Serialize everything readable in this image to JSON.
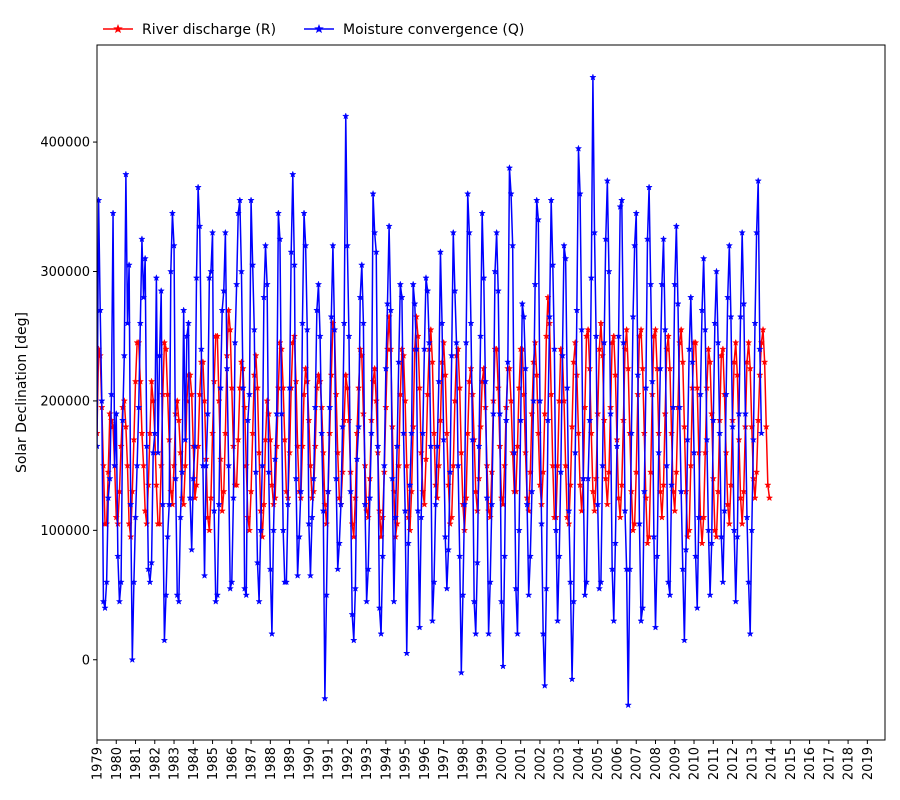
{
  "chart_data": {
    "type": "line",
    "title": "",
    "xlabel": "",
    "ylabel": "Solar Declination [deg]",
    "x_range": [
      1979.0,
      2019.9167
    ],
    "ylim": [
      -62000,
      475000
    ],
    "x_tick_labels": [
      "1979",
      "1980",
      "1981",
      "1982",
      "1983",
      "1984",
      "1985",
      "1986",
      "1987",
      "1988",
      "1989",
      "1990",
      "1991",
      "1992",
      "1993",
      "1994",
      "1995",
      "1996",
      "1997",
      "1998",
      "1999",
      "2000",
      "2001",
      "2002",
      "2003",
      "2004",
      "2005",
      "2006",
      "2007",
      "2008",
      "2009",
      "2010",
      "2011",
      "2012",
      "2013",
      "2014",
      "2015",
      "2016",
      "2017",
      "2018",
      "2019"
    ],
    "y_ticks": [
      0,
      100000,
      200000,
      300000,
      400000
    ],
    "y_tick_labels": [
      "0",
      "100000",
      "200000",
      "300000",
      "400000"
    ],
    "grid": false,
    "legend": {
      "placement": "top-left, above plot",
      "marker": "star"
    },
    "x_sampling": "monthly, 1979-01 to 2019-12",
    "series": [
      {
        "name": "River discharge ($R$)",
        "legend_label": "River discharge (R)",
        "color": "#ff0000",
        "marker": "star",
        "values": [
          175000,
          240000,
          235000,
          195000,
          150000,
          105000,
          105000,
          145000,
          190000,
          185000,
          180000,
          150000,
          110000,
          105000,
          130000,
          165000,
          195000,
          200000,
          180000,
          150000,
          105000,
          95000,
          130000,
          170000,
          215000,
          245000,
          245000,
          215000,
          175000,
          150000,
          115000,
          105000,
          135000,
          175000,
          215000,
          200000,
          175000,
          135000,
          105000,
          105000,
          150000,
          205000,
          245000,
          240000,
          205000,
          170000,
          130000,
          120000,
          150000,
          190000,
          200000,
          185000,
          160000,
          125000,
          120000,
          150000,
          200000,
          220000,
          220000,
          205000,
          165000,
          125000,
          135000,
          165000,
          205000,
          230000,
          230000,
          200000,
          155000,
          110000,
          100000,
          125000,
          175000,
          215000,
          250000,
          250000,
          200000,
          155000,
          115000,
          130000,
          175000,
          235000,
          270000,
          255000,
          210000,
          165000,
          135000,
          135000,
          170000,
          210000,
          230000,
          225000,
          195000,
          150000,
          110000,
          100000,
          130000,
          175000,
          220000,
          235000,
          210000,
          160000,
          115000,
          95000,
          120000,
          170000,
          200000,
          190000,
          170000,
          135000,
          120000,
          125000,
          165000,
          210000,
          245000,
          240000,
          210000,
          170000,
          130000,
          125000,
          160000,
          210000,
          245000,
          250000,
          215000,
          165000,
          130000,
          125000,
          165000,
          205000,
          225000,
          215000,
          185000,
          150000,
          125000,
          130000,
          165000,
          210000,
          220000,
          215000,
          195000,
          160000,
          120000,
          105000,
          130000,
          175000,
          220000,
          260000,
          255000,
          205000,
          160000,
          125000,
          120000,
          145000,
          185000,
          220000,
          210000,
          185000,
          145000,
          105000,
          95000,
          125000,
          175000,
          210000,
          240000,
          235000,
          190000,
          150000,
          115000,
          110000,
          140000,
          185000,
          215000,
          225000,
          200000,
          160000,
          115000,
          95000,
          110000,
          145000,
          195000,
          240000,
          265000,
          240000,
          180000,
          130000,
          95000,
          105000,
          150000,
          205000,
          240000,
          235000,
          200000,
          150000,
          110000,
          100000,
          130000,
          180000,
          240000,
          265000,
          250000,
          210000,
          160000,
          130000,
          120000,
          155000,
          205000,
          240000,
          255000,
          230000,
          175000,
          135000,
          125000,
          150000,
          185000,
          230000,
          245000,
          220000,
          175000,
          135000,
          105000,
          110000,
          150000,
          200000,
          235000,
          240000,
          210000,
          160000,
          120000,
          100000,
          125000,
          175000,
          215000,
          225000,
          205000,
          170000,
          130000,
          115000,
          140000,
          180000,
          215000,
          225000,
          195000,
          150000,
          115000,
          110000,
          145000,
          200000,
          240000,
          240000,
          210000,
          165000,
          125000,
          120000,
          150000,
          195000,
          225000,
          225000,
          200000,
          160000,
          130000,
          130000,
          165000,
          210000,
          240000,
          240000,
          205000,
          160000,
          125000,
          115000,
          145000,
          190000,
          230000,
          245000,
          220000,
          175000,
          135000,
          120000,
          145000,
          190000,
          250000,
          280000,
          260000,
          205000,
          150000,
          110000,
          110000,
          150000,
          200000,
          240000,
          235000,
          200000,
          150000,
          110000,
          105000,
          135000,
          180000,
          230000,
          245000,
          220000,
          175000,
          135000,
          115000,
          140000,
          195000,
          250000,
          255000,
          225000,
          175000,
          130000,
          115000,
          140000,
          190000,
          240000,
          260000,
          235000,
          185000,
          140000,
          120000,
          145000,
          195000,
          245000,
          250000,
          220000,
          170000,
          125000,
          110000,
          135000,
          185000,
          240000,
          255000,
          225000,
          175000,
          130000,
          100000,
          105000,
          145000,
          205000,
          250000,
          255000,
          225000,
          175000,
          125000,
          90000,
          95000,
          145000,
          205000,
          250000,
          255000,
          225000,
          175000,
          130000,
          110000,
          135000,
          190000,
          240000,
          250000,
          225000,
          175000,
          130000,
          115000,
          145000,
          195000,
          245000,
          255000,
          230000,
          180000,
          130000,
          95000,
          100000,
          150000,
          210000,
          245000,
          245000,
          210000,
          160000,
          110000,
          90000,
          110000,
          160000,
          210000,
          240000,
          230000,
          190000,
          140000,
          100000,
          95000,
          130000,
          185000,
          235000,
          240000,
          205000,
          160000,
          120000,
          105000,
          135000,
          185000,
          230000,
          245000,
          220000,
          170000,
          125000,
          105000,
          130000,
          180000,
          230000,
          245000,
          225000,
          180000,
          140000,
          125000,
          145000,
          185000,
          220000,
          245000,
          255000,
          230000,
          180000,
          135000,
          125000
        ]
      },
      {
        "name": "Moisture convergence ($Q$)",
        "legend_label": "Moisture convergence (Q)",
        "color": "#0000ff",
        "marker": "star",
        "values": [
          165000,
          355000,
          270000,
          200000,
          45000,
          40000,
          60000,
          125000,
          140000,
          205000,
          345000,
          150000,
          190000,
          80000,
          45000,
          60000,
          185000,
          235000,
          375000,
          260000,
          305000,
          120000,
          0,
          60000,
          110000,
          150000,
          195000,
          260000,
          325000,
          280000,
          310000,
          165000,
          70000,
          60000,
          75000,
          160000,
          175000,
          295000,
          160000,
          235000,
          285000,
          120000,
          15000,
          50000,
          95000,
          120000,
          300000,
          345000,
          320000,
          140000,
          50000,
          45000,
          110000,
          145000,
          270000,
          170000,
          250000,
          260000,
          125000,
          85000,
          140000,
          165000,
          295000,
          365000,
          335000,
          240000,
          150000,
          65000,
          150000,
          190000,
          295000,
          300000,
          330000,
          115000,
          45000,
          50000,
          120000,
          210000,
          270000,
          285000,
          330000,
          225000,
          150000,
          55000,
          60000,
          125000,
          245000,
          290000,
          345000,
          355000,
          300000,
          210000,
          55000,
          50000,
          185000,
          205000,
          355000,
          305000,
          255000,
          145000,
          75000,
          45000,
          100000,
          150000,
          280000,
          320000,
          290000,
          145000,
          70000,
          20000,
          100000,
          155000,
          190000,
          345000,
          325000,
          190000,
          100000,
          60000,
          60000,
          120000,
          210000,
          315000,
          375000,
          305000,
          140000,
          65000,
          95000,
          130000,
          260000,
          345000,
          320000,
          255000,
          105000,
          65000,
          110000,
          140000,
          195000,
          270000,
          290000,
          250000,
          175000,
          115000,
          -30000,
          50000,
          130000,
          195000,
          265000,
          320000,
          255000,
          140000,
          70000,
          90000,
          120000,
          180000,
          260000,
          420000,
          320000,
          250000,
          130000,
          35000,
          15000,
          55000,
          155000,
          180000,
          280000,
          305000,
          260000,
          120000,
          45000,
          70000,
          125000,
          175000,
          360000,
          330000,
          315000,
          165000,
          40000,
          20000,
          80000,
          150000,
          225000,
          275000,
          335000,
          270000,
          140000,
          45000,
          110000,
          165000,
          230000,
          290000,
          280000,
          175000,
          115000,
          5000,
          90000,
          135000,
          175000,
          290000,
          275000,
          240000,
          115000,
          25000,
          110000,
          175000,
          240000,
          295000,
          285000,
          245000,
          165000,
          30000,
          60000,
          120000,
          165000,
          215000,
          315000,
          260000,
          170000,
          95000,
          55000,
          85000,
          145000,
          235000,
          330000,
          285000,
          245000,
          150000,
          80000,
          -10000,
          50000,
          120000,
          245000,
          360000,
          330000,
          260000,
          170000,
          45000,
          20000,
          75000,
          165000,
          250000,
          345000,
          295000,
          215000,
          125000,
          20000,
          60000,
          120000,
          190000,
          300000,
          330000,
          285000,
          190000,
          45000,
          -5000,
          80000,
          185000,
          230000,
          380000,
          360000,
          320000,
          160000,
          55000,
          20000,
          100000,
          185000,
          275000,
          265000,
          225000,
          120000,
          50000,
          80000,
          130000,
          200000,
          290000,
          355000,
          340000,
          200000,
          105000,
          20000,
          -20000,
          55000,
          185000,
          265000,
          355000,
          305000,
          240000,
          100000,
          30000,
          80000,
          145000,
          235000,
          320000,
          310000,
          210000,
          115000,
          60000,
          -15000,
          45000,
          160000,
          270000,
          395000,
          360000,
          255000,
          140000,
          50000,
          60000,
          140000,
          185000,
          295000,
          450000,
          330000,
          250000,
          120000,
          55000,
          60000,
          150000,
          245000,
          325000,
          370000,
          300000,
          190000,
          70000,
          30000,
          90000,
          165000,
          250000,
          350000,
          355000,
          245000,
          115000,
          70000,
          -35000,
          70000,
          175000,
          265000,
          320000,
          345000,
          220000,
          105000,
          30000,
          40000,
          130000,
          210000,
          325000,
          365000,
          290000,
          215000,
          95000,
          25000,
          80000,
          160000,
          225000,
          290000,
          325000,
          255000,
          150000,
          60000,
          50000,
          135000,
          195000,
          290000,
          335000,
          275000,
          195000,
          130000,
          70000,
          15000,
          85000,
          170000,
          240000,
          280000,
          230000,
          160000,
          80000,
          40000,
          110000,
          205000,
          270000,
          310000,
          255000,
          170000,
          100000,
          50000,
          90000,
          185000,
          260000,
          300000,
          245000,
          175000,
          95000,
          60000,
          115000,
          205000,
          280000,
          320000,
          265000,
          180000,
          100000,
          45000,
          95000,
          190000,
          265000,
          330000,
          275000,
          190000,
          110000,
          60000,
          20000,
          100000,
          170000,
          260000,
          330000,
          370000,
          240000,
          175000
        ]
      }
    ]
  }
}
